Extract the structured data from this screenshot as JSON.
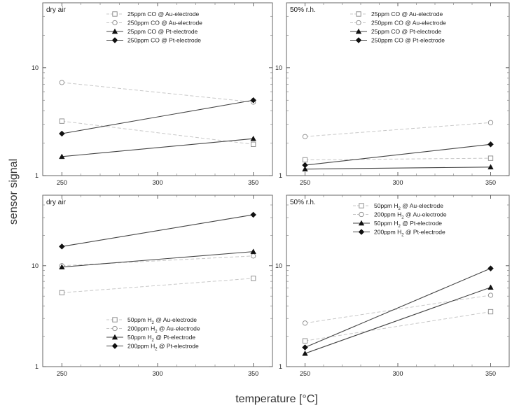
{
  "figure": {
    "ylabel": "sensor signal",
    "xlabel": "temperature [°C]"
  },
  "chart_data": [
    {
      "type": "line",
      "panel_label": "dry air",
      "x": [
        250,
        350
      ],
      "xlim": [
        240,
        360
      ],
      "xticks": [
        250,
        300,
        350
      ],
      "ylim": [
        1,
        40
      ],
      "yscale": "log",
      "yticks": [
        1,
        10
      ],
      "legend": "top-left",
      "grid": false,
      "series": [
        {
          "name": "25ppm CO @ Au-electrode",
          "values": [
            3.2,
            1.95
          ],
          "marker": "square-open",
          "style": "dashed",
          "color": "#c8c8c8"
        },
        {
          "name": "250ppm CO @ Au-electrode",
          "values": [
            7.3,
            4.8
          ],
          "marker": "circle-open",
          "style": "dashed",
          "color": "#c8c8c8"
        },
        {
          "name": "25ppm CO @ Pt-electrode",
          "values": [
            1.5,
            2.2
          ],
          "marker": "triangle",
          "style": "solid",
          "color": "#444444"
        },
        {
          "name": "250ppm CO @ Pt-electrode",
          "values": [
            2.45,
            5.0
          ],
          "marker": "diamond",
          "style": "solid",
          "color": "#444444"
        }
      ]
    },
    {
      "type": "line",
      "panel_label": "50% r.h.",
      "x": [
        250,
        350
      ],
      "xlim": [
        240,
        360
      ],
      "xticks": [
        250,
        300,
        350
      ],
      "ylim": [
        1,
        40
      ],
      "yscale": "log",
      "yticks": [
        1,
        10
      ],
      "legend": "top-center",
      "grid": false,
      "series": [
        {
          "name": "25ppm CO @ Au-electrode",
          "values": [
            1.4,
            1.45
          ],
          "marker": "square-open",
          "style": "dashed",
          "color": "#c8c8c8"
        },
        {
          "name": "250ppm CO @ Au-electrode",
          "values": [
            2.3,
            3.1
          ],
          "marker": "circle-open",
          "style": "dashed",
          "color": "#c8c8c8"
        },
        {
          "name": "25ppm CO @ Pt-electrode",
          "values": [
            1.15,
            1.2
          ],
          "marker": "triangle",
          "style": "solid",
          "color": "#444444"
        },
        {
          "name": "250ppm CO @ Pt-electrode",
          "values": [
            1.25,
            1.95
          ],
          "marker": "diamond",
          "style": "solid",
          "color": "#444444"
        }
      ]
    },
    {
      "type": "line",
      "panel_label": "dry air",
      "x": [
        250,
        350
      ],
      "xlim": [
        240,
        360
      ],
      "xticks": [
        250,
        300,
        350
      ],
      "ylim": [
        1,
        50
      ],
      "yscale": "log",
      "yticks": [
        1,
        10
      ],
      "legend": "bottom-center",
      "grid": false,
      "series": [
        {
          "name": "50ppm H",
          "sub": "2",
          "suffix": " @ Au-electrode",
          "values": [
            5.4,
            7.5
          ],
          "marker": "square-open",
          "style": "dashed",
          "color": "#c8c8c8"
        },
        {
          "name": "200ppm H",
          "sub": "2",
          "suffix": " @ Au-electrode",
          "values": [
            10.0,
            12.5
          ],
          "marker": "circle-open",
          "style": "dashed",
          "color": "#c8c8c8"
        },
        {
          "name": "50ppm H",
          "sub": "2",
          "suffix": " @ Pt-electrode",
          "values": [
            9.7,
            13.8
          ],
          "marker": "triangle",
          "style": "solid",
          "color": "#444444"
        },
        {
          "name": "200ppm H",
          "sub": "2",
          "suffix": " @ Pt-electrode",
          "values": [
            15.5,
            32.0
          ],
          "marker": "diamond",
          "style": "solid",
          "color": "#444444"
        }
      ]
    },
    {
      "type": "line",
      "panel_label": "50% r.h.",
      "x": [
        250,
        350
      ],
      "xlim": [
        240,
        360
      ],
      "xticks": [
        250,
        300,
        350
      ],
      "ylim": [
        1,
        50
      ],
      "yscale": "log",
      "yticks": [
        1,
        10
      ],
      "legend": "top-center",
      "grid": false,
      "series": [
        {
          "name": "50ppm H",
          "sub": "2",
          "suffix": " @ Au-electrode",
          "values": [
            1.8,
            3.5
          ],
          "marker": "square-open",
          "style": "dashed",
          "color": "#c8c8c8"
        },
        {
          "name": "200ppm H",
          "sub": "2",
          "suffix": " @ Au-electrode",
          "values": [
            2.7,
            5.1
          ],
          "marker": "circle-open",
          "style": "dashed",
          "color": "#c8c8c8"
        },
        {
          "name": "50ppm H",
          "sub": "2",
          "suffix": " @ Pt-electrode",
          "values": [
            1.35,
            6.1
          ],
          "marker": "triangle",
          "style": "solid",
          "color": "#444444"
        },
        {
          "name": "200ppm H",
          "sub": "2",
          "suffix": " @ Pt-electrode",
          "values": [
            1.55,
            9.4
          ],
          "marker": "diamond",
          "style": "solid",
          "color": "#444444"
        }
      ]
    }
  ]
}
